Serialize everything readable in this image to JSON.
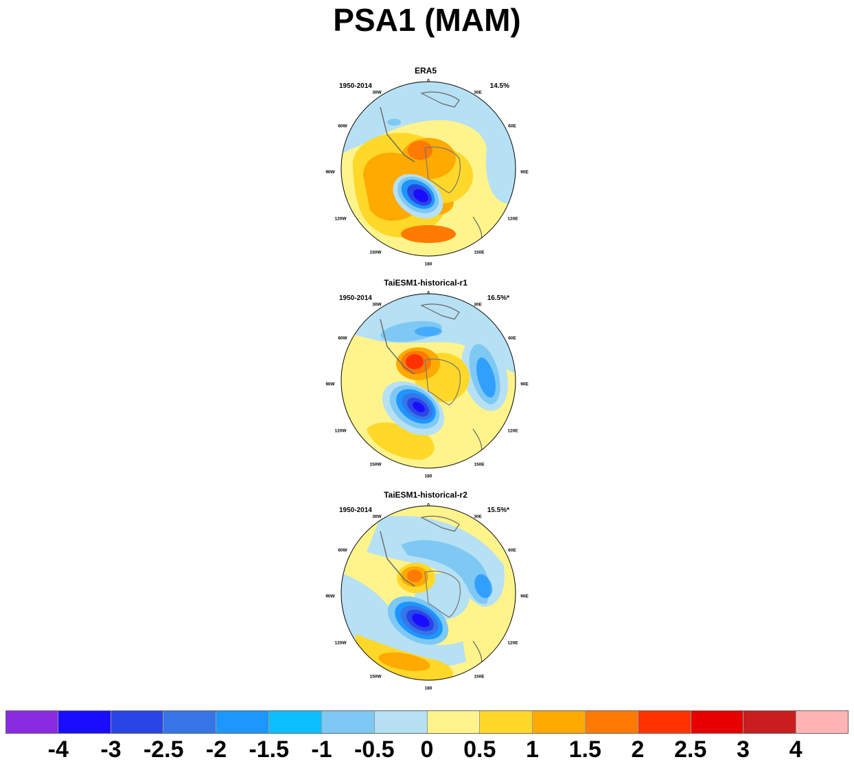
{
  "title": "PSA1 (MAM)",
  "panels": [
    {
      "name": "ERA5",
      "period": "1950-2014",
      "variance": "14.5%"
    },
    {
      "name": "TaiESM1-historical-r1",
      "period": "1950-2014",
      "variance": "16.5%*"
    },
    {
      "name": "TaiESM1-historical-r2",
      "period": "1950-2014",
      "variance": "15.5%*"
    }
  ],
  "lon_labels": [
    "0",
    "30E",
    "60E",
    "90E",
    "120E",
    "150E",
    "180",
    "150W",
    "120W",
    "90W",
    "60W",
    "30W"
  ],
  "colorbar": {
    "colors": [
      "#8a2be2",
      "#1a0dff",
      "#2a45e6",
      "#3575e8",
      "#1e96ff",
      "#0cc0ff",
      "#7ec8f4",
      "#b6e0f4",
      "#fff48c",
      "#ffd82a",
      "#ffaa00",
      "#ff7a00",
      "#ff3200",
      "#e60000",
      "#c81e1e",
      "#ffb4b4"
    ],
    "labels": [
      "-4",
      "-3",
      "-2.5",
      "-2",
      "-1.5",
      "-1",
      "-0.5",
      "0",
      "0.5",
      "1",
      "1.5",
      "2",
      "2.5",
      "3",
      "4"
    ]
  }
}
